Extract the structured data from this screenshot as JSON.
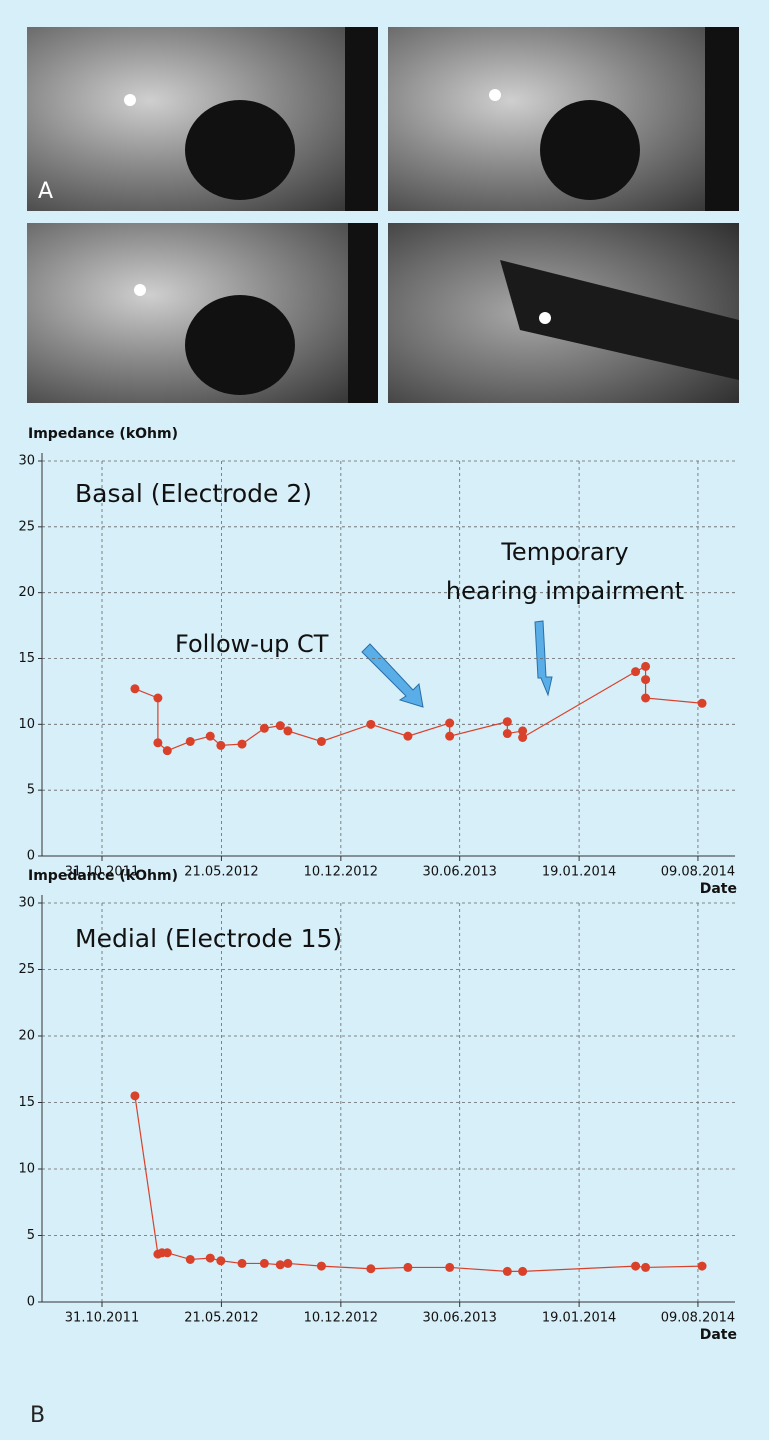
{
  "figure": {
    "panel_a_label": "A",
    "panel_b_label": "B"
  },
  "chart_data": [
    {
      "type": "line",
      "title": "Basal (Electrode 2)",
      "y_label": "Impedance (kOhm)",
      "x_label": "Date",
      "x": [
        "26.12.2011",
        "03.02.2012",
        "03.02.2012",
        "19.02.2012",
        "29.03.2012",
        "02.05.2012",
        "20.05.2012",
        "25.06.2012",
        "02.08.2012",
        "29.08.2012",
        "11.09.2012",
        "07.11.2012",
        "30.01.2013",
        "03.04.2013",
        "13.06.2013",
        "13.06.2013",
        "19.09.2013",
        "19.09.2013",
        "15.10.2013",
        "15.10.2013",
        "25.04.2014",
        "12.05.2014",
        "12.05.2014",
        "12.05.2014",
        "16.08.2014"
      ],
      "series": [
        {
          "color": "#d9412b",
          "values": [
            12.7,
            12.0,
            8.6,
            8.0,
            8.7,
            9.1,
            8.4,
            8.5,
            9.7,
            9.9,
            9.5,
            8.7,
            10.0,
            9.1,
            10.1,
            9.1,
            10.2,
            9.3,
            9.5,
            9.0,
            14.0,
            14.4,
            13.4,
            12.0,
            11.6
          ]
        }
      ],
      "xlim": [
        "21.07.2011",
        "11.10.2014"
      ],
      "xticks": [
        "31.10.2011",
        "21.05.2012",
        "10.12.2012",
        "30.06.2013",
        "19.01.2014",
        "09.08.2014"
      ],
      "ylim": [
        0,
        30
      ],
      "yticks": [
        0,
        5,
        10,
        15,
        20,
        25,
        30
      ],
      "grid": true,
      "annotations": [
        "Follow-up CT",
        "Temporary",
        "hearing impairment"
      ]
    },
    {
      "type": "line",
      "title": "Medial (Electrode 15)",
      "y_label": "Impedance (kOhm)",
      "x_label": "Date",
      "x": [
        "26.12.2011",
        "03.02.2012",
        "10.02.2012",
        "19.02.2012",
        "29.03.2012",
        "02.05.2012",
        "20.05.2012",
        "25.06.2012",
        "02.08.2012",
        "29.08.2012",
        "11.09.2012",
        "07.11.2012",
        "30.01.2013",
        "03.04.2013",
        "13.06.2013",
        "19.09.2013",
        "15.10.2013",
        "25.04.2014",
        "12.05.2014",
        "16.08.2014"
      ],
      "series": [
        {
          "color": "#d9412b",
          "values": [
            15.5,
            3.6,
            3.7,
            3.7,
            3.2,
            3.3,
            3.1,
            2.9,
            2.9,
            2.8,
            2.9,
            2.7,
            2.5,
            2.6,
            2.6,
            2.3,
            2.3,
            2.7,
            2.6,
            2.7
          ]
        }
      ],
      "xlim": [
        "21.07.2011",
        "11.10.2014"
      ],
      "xticks": [
        "31.10.2011",
        "21.05.2012",
        "10.12.2012",
        "30.06.2013",
        "19.01.2014",
        "09.08.2014"
      ],
      "ylim": [
        0,
        30
      ],
      "yticks": [
        0,
        5,
        10,
        15,
        20,
        25,
        30
      ],
      "grid": true
    }
  ]
}
